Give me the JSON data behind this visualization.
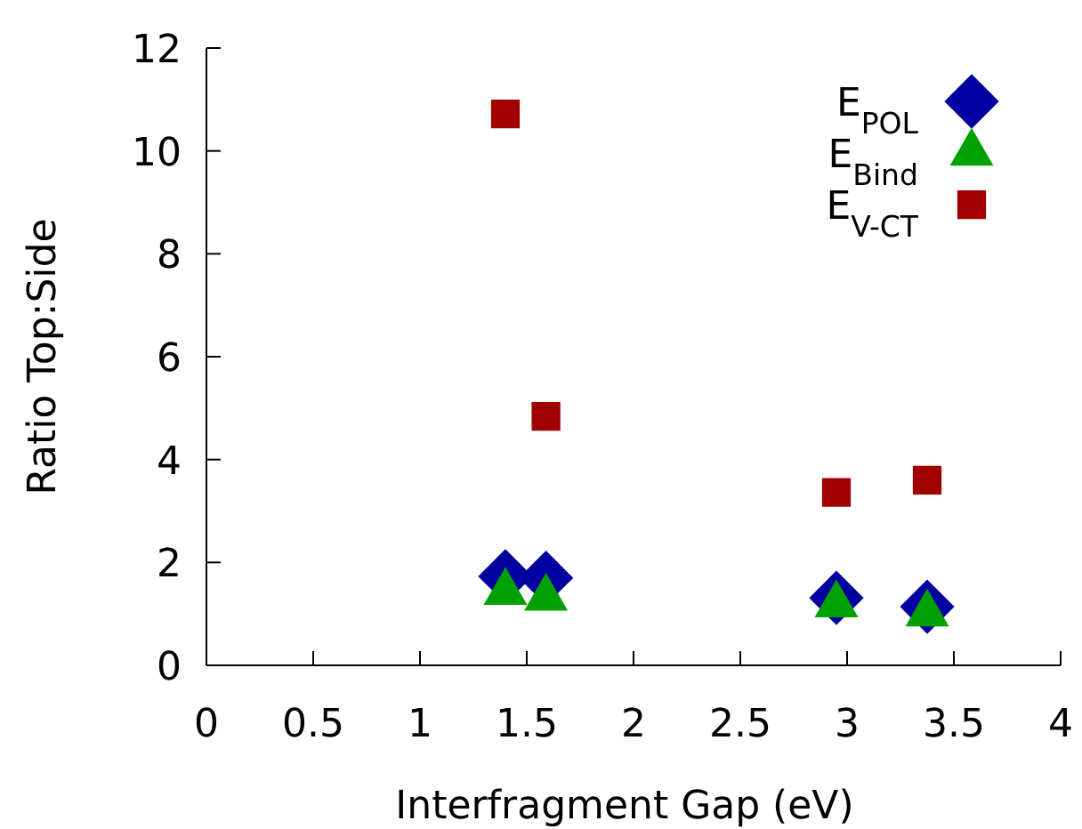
{
  "chart_data": {
    "type": "scatter",
    "xlabel": "Interfragment Gap (eV)",
    "ylabel": "Ratio Top:Side",
    "xlim": [
      0,
      4
    ],
    "xticks": [
      0,
      0.5,
      1,
      1.5,
      2,
      2.5,
      3,
      3.5,
      4
    ],
    "ylim": [
      0,
      12
    ],
    "yticks": [
      0,
      2,
      4,
      6,
      8,
      10,
      12
    ],
    "grid": false,
    "legend": "top right",
    "x": [
      1.4,
      1.59,
      2.95,
      3.375
    ],
    "series": [
      {
        "name": "E$_{POL}$",
        "color": "#0000a0",
        "marker": "diamond",
        "values": [
          1.73,
          1.7,
          1.31,
          1.14
        ]
      },
      {
        "name": "E$_{Bind}$",
        "color": "#00a000",
        "marker": "triangle",
        "values": [
          1.42,
          1.31,
          1.18,
          1.0
        ]
      },
      {
        "name": "E$_{V-CT}$",
        "color": "#a00000",
        "marker": "square",
        "values": [
          10.72,
          4.84,
          3.36,
          3.6
        ]
      }
    ]
  }
}
